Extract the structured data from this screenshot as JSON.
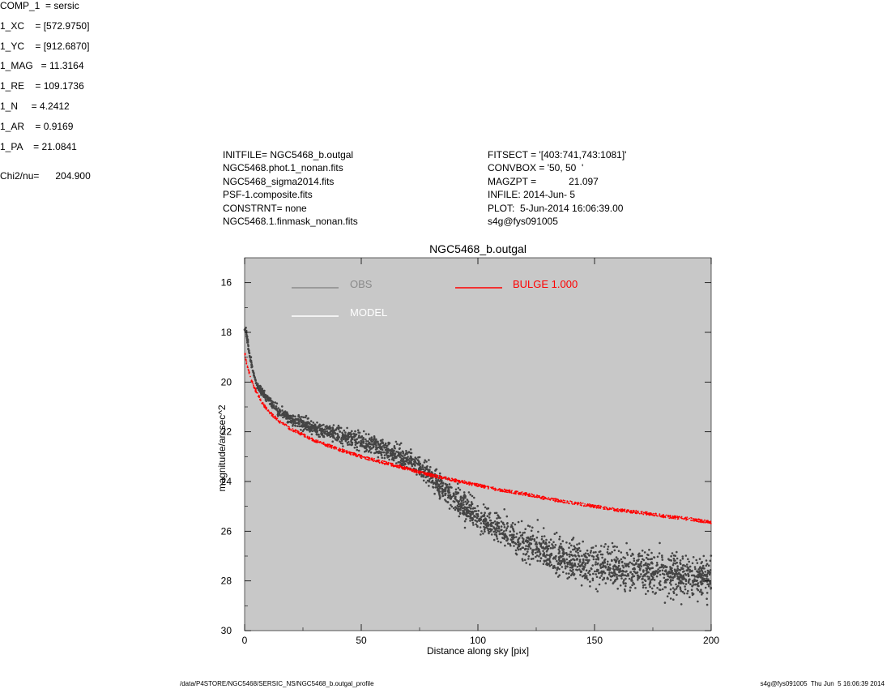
{
  "header_left": [
    "INITFILE= NGC5468_b.outgal",
    "NGC5468.phot.1_nonan.fits",
    "NGC5468_sigma2014.fits",
    "PSF-1.composite.fits",
    "CONSTRNT= none",
    "NGC5468.1.finmask_nonan.fits"
  ],
  "header_mid": [
    "FITSECT = '[403:741,743:1081]'",
    "CONVBOX = '50, 50  '",
    "MAGZPT =            21.097",
    "INFILE: 2014-Jun- 5",
    "PLOT:  5-Jun-2014 16:06:39.00",
    "s4g@fys091005"
  ],
  "components": [
    "COMP_1  = sersic",
    "1_XC    = [572.9750]",
    "1_YC    = [912.6870]",
    "1_MAG   = 11.3164",
    "1_RE    = 109.1736",
    "1_N     = 4.2412",
    "1_AR    = 0.9169",
    "1_PA    = 21.0841"
  ],
  "chi2_line": "Chi2/nu=      204.900",
  "footer": {
    "left": "/data/P4STORE/NGC5468/SERSIC_NS/NGC5468_b.outgal_profile",
    "right": "s4g@fys091005  Thu Jun  5 16:06:39 2014"
  },
  "chart_data": {
    "type": "scatter",
    "title": "NGC5468_b.outgal",
    "xlabel": "Distance along sky [pix]",
    "ylabel": "magnitude/arcsec^2",
    "xlim": [
      0,
      200
    ],
    "ylim": [
      30,
      15
    ],
    "y_inverted": true,
    "grid": false,
    "background": "#c8c8c8",
    "x_ticks": [
      0,
      50,
      100,
      150,
      200
    ],
    "y_ticks": [
      16,
      18,
      20,
      22,
      24,
      26,
      28,
      30
    ],
    "legend": [
      {
        "label": "OBS",
        "color": "#8a8a8a"
      },
      {
        "label": "MODEL",
        "color": "#ffffff"
      },
      {
        "label": "BULGE  1.000",
        "color": "#ff0000"
      }
    ],
    "series": [
      {
        "name": "OBS",
        "color": "#444444",
        "x": [
          0.5,
          1,
          1.5,
          2,
          2.5,
          3,
          4,
          5,
          6,
          8,
          10,
          12,
          15,
          18,
          20,
          25,
          30,
          35,
          40,
          45,
          50,
          55,
          60,
          65,
          70,
          75,
          80,
          85,
          90,
          95,
          100,
          105,
          110,
          115,
          120,
          125,
          130,
          135,
          140,
          145,
          150,
          155,
          160,
          165,
          170,
          175,
          180,
          185,
          190,
          195,
          200
        ],
        "y": [
          17.9,
          18.2,
          18.5,
          18.8,
          19.1,
          19.3,
          19.7,
          20.0,
          20.2,
          20.5,
          20.7,
          20.9,
          21.2,
          21.4,
          21.5,
          21.7,
          21.9,
          22.0,
          22.1,
          22.25,
          22.4,
          22.6,
          22.75,
          22.9,
          23.1,
          23.4,
          23.8,
          24.3,
          24.7,
          25.1,
          25.4,
          25.7,
          26.0,
          26.2,
          26.45,
          26.65,
          26.85,
          27.0,
          27.15,
          27.25,
          27.35,
          27.45,
          27.5,
          27.6,
          27.65,
          27.7,
          27.75,
          27.8,
          27.85,
          27.9,
          27.95
        ],
        "scatter_mag": [
          0.2,
          0.2,
          0.2,
          0.2,
          0.2,
          0.2,
          0.2,
          0.2,
          0.25,
          0.25,
          0.25,
          0.3,
          0.3,
          0.35,
          0.35,
          0.4,
          0.45,
          0.45,
          0.45,
          0.5,
          0.5,
          0.5,
          0.5,
          0.55,
          0.55,
          0.6,
          0.65,
          0.7,
          0.75,
          0.8,
          0.8,
          0.8,
          0.85,
          0.9,
          0.95,
          1.0,
          1.0,
          1.05,
          1.1,
          1.1,
          1.15,
          1.15,
          1.15,
          1.2,
          1.2,
          1.2,
          1.2,
          1.2,
          1.2,
          1.2,
          1.2
        ]
      },
      {
        "name": "BULGE  1.000",
        "color": "#ff0000",
        "x": [
          0,
          1,
          2,
          3,
          5,
          8,
          10,
          15,
          20,
          30,
          40,
          50,
          60,
          70,
          80,
          90,
          100,
          110,
          120,
          130,
          140,
          150,
          160,
          170,
          180,
          190,
          200
        ],
        "y": [
          18.8,
          19.3,
          19.65,
          19.95,
          20.4,
          20.9,
          21.15,
          21.6,
          21.9,
          22.35,
          22.7,
          23.0,
          23.25,
          23.5,
          23.75,
          23.95,
          24.15,
          24.35,
          24.5,
          24.7,
          24.85,
          25.0,
          25.15,
          25.25,
          25.4,
          25.5,
          25.65
        ]
      }
    ]
  }
}
